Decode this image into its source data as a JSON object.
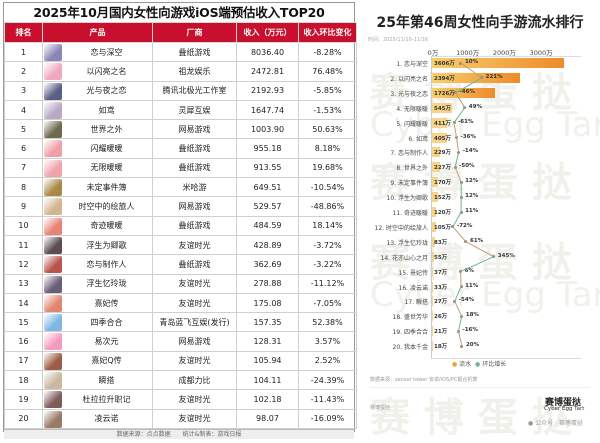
{
  "left_table": {
    "title": "2025年10月国内女性向游戏iOS端预估收入TOP20",
    "header_color": "#c8102e",
    "columns": [
      "排名",
      "产品",
      "厂商",
      "收入（万元）",
      "收入环比变化"
    ],
    "rows": [
      {
        "rank": "1",
        "product": "恋与深空",
        "publisher": "叠纸游戏",
        "revenue": "8036.40",
        "change": "-8.28%",
        "thumb": "#8c86b8"
      },
      {
        "rank": "2",
        "product": "以闪亮之名",
        "publisher": "祖龙娱乐",
        "revenue": "2472.81",
        "change": "76.48%",
        "thumb": "#f0a8c0"
      },
      {
        "rank": "3",
        "product": "光与夜之恋",
        "publisher": "腾讯北极光工作室",
        "revenue": "2192.93",
        "change": "-5.85%",
        "thumb": "#5a5f86"
      },
      {
        "rank": "4",
        "product": "如鸢",
        "publisher": "灵犀互娱",
        "revenue": "1647.74",
        "change": "-1.53%",
        "thumb": "#b9a9c4"
      },
      {
        "rank": "5",
        "product": "世界之外",
        "publisher": "网易游戏",
        "revenue": "1003.90",
        "change": "50.63%",
        "thumb": "#6e6a4e"
      },
      {
        "rank": "6",
        "product": "闪耀暖暖",
        "publisher": "叠纸游戏",
        "revenue": "955.18",
        "change": "8.18%",
        "thumb": "#f2a0a8"
      },
      {
        "rank": "7",
        "product": "无限暖暖",
        "publisher": "叠纸游戏",
        "revenue": "913.55",
        "change": "19.68%",
        "thumb": "#f1a3ab"
      },
      {
        "rank": "8",
        "product": "未定事件簿",
        "publisher": "米哈游",
        "revenue": "649.51",
        "change": "-10.54%",
        "thumb": "#a98946"
      },
      {
        "rank": "9",
        "product": "时空中的绘旅人",
        "publisher": "网易游戏",
        "revenue": "529.57",
        "change": "-48.86%",
        "thumb": "#d3b58e"
      },
      {
        "rank": "10",
        "product": "奇迹暖暖",
        "publisher": "叠纸游戏",
        "revenue": "484.59",
        "change": "18.14%",
        "thumb": "#e98378"
      },
      {
        "rank": "11",
        "product": "浮生为卿歌",
        "publisher": "友谊时光",
        "revenue": "428.89",
        "change": "-3.72%",
        "thumb": "#5a4c4f"
      },
      {
        "rank": "12",
        "product": "恋与制作人",
        "publisher": "叠纸游戏",
        "revenue": "362.69",
        "change": "-3.22%",
        "thumb": "#b8534d"
      },
      {
        "rank": "13",
        "product": "浮生忆玲珑",
        "publisher": "友谊时光",
        "revenue": "278.88",
        "change": "-11.12%",
        "thumb": "#6a5d78"
      },
      {
        "rank": "14",
        "product": "熹妃传",
        "publisher": "友谊时光",
        "revenue": "175.08",
        "change": "-7.05%",
        "thumb": "#e2866f"
      },
      {
        "rank": "15",
        "product": "四季合合",
        "publisher": "青岛蓝飞互娱(发行)",
        "revenue": "157.35",
        "change": "52.38%",
        "thumb": "#7fb7e3"
      },
      {
        "rank": "16",
        "product": "易次元",
        "publisher": "网易游戏",
        "revenue": "128.31",
        "change": "3.57%",
        "thumb": "#f59bbf"
      },
      {
        "rank": "17",
        "product": "熹妃Q传",
        "publisher": "友谊时光",
        "revenue": "105.94",
        "change": "2.52%",
        "thumb": "#9e5c46"
      },
      {
        "rank": "18",
        "product": "瞬搭",
        "publisher": "成都力比",
        "revenue": "104.11",
        "change": "-24.39%",
        "thumb": "#c8b9a0"
      },
      {
        "rank": "19",
        "product": "杜拉拉升职记",
        "publisher": "友谊时光",
        "revenue": "102.18",
        "change": "-11.43%",
        "thumb": "#7d5c5a"
      },
      {
        "rank": "20",
        "product": "凌云诺",
        "publisher": "友谊时光",
        "revenue": "98.07",
        "change": "-16.09%",
        "thumb": "#9a7a66"
      }
    ],
    "footer": "数据来源：点点数据　　统计&制表：游戏日报"
  },
  "right_chart": {
    "title": "25年第46周女性向手游流水排行",
    "date": "时间：2025/11/10-11/16",
    "axis_ticks": [
      "0万",
      "1000万",
      "2000万",
      "3000万"
    ],
    "legend": {
      "bar": "流水",
      "line": "环比增长"
    },
    "source": "数据来源：sensor tower 安卓/iOS/PC报合折算",
    "brand_small": "赛博蛋挞",
    "brand_big": "赛博蛋挞",
    "brand_en": "Cyber Egg Tart",
    "wechat": "公众号 · 赛博蛋挞",
    "watermark_cn": "赛 博 蛋 挞　赛",
    "watermark_en": "Cyber Egg Tart  Cyb"
  },
  "chart_data": [
    {
      "type": "table",
      "title": "2025年10月国内女性向游戏iOS端预估收入TOP20",
      "columns": [
        "排名",
        "产品",
        "厂商",
        "收入（万元）",
        "收入环比变化"
      ],
      "rows": [
        [
          1,
          "恋与深空",
          "叠纸游戏",
          8036.4,
          "-8.28%"
        ],
        [
          2,
          "以闪亮之名",
          "祖龙娱乐",
          2472.81,
          "76.48%"
        ],
        [
          3,
          "光与夜之恋",
          "腾讯北极光工作室",
          2192.93,
          "-5.85%"
        ],
        [
          4,
          "如鸢",
          "灵犀互娱",
          1647.74,
          "-1.53%"
        ],
        [
          5,
          "世界之外",
          "网易游戏",
          1003.9,
          "50.63%"
        ],
        [
          6,
          "闪耀暖暖",
          "叠纸游戏",
          955.18,
          "8.18%"
        ],
        [
          7,
          "无限暖暖",
          "叠纸游戏",
          913.55,
          "19.68%"
        ],
        [
          8,
          "未定事件簿",
          "米哈游",
          649.51,
          "-10.54%"
        ],
        [
          9,
          "时空中的绘旅人",
          "网易游戏",
          529.57,
          "-48.86%"
        ],
        [
          10,
          "奇迹暖暖",
          "叠纸游戏",
          484.59,
          "18.14%"
        ],
        [
          11,
          "浮生为卿歌",
          "友谊时光",
          428.89,
          "-3.72%"
        ],
        [
          12,
          "恋与制作人",
          "叠纸游戏",
          362.69,
          "-3.22%"
        ],
        [
          13,
          "浮生忆玲珑",
          "友谊时光",
          278.88,
          "-11.12%"
        ],
        [
          14,
          "熹妃传",
          "友谊时光",
          175.08,
          "-7.05%"
        ],
        [
          15,
          "四季合合",
          "青岛蓝飞互娱(发行)",
          157.35,
          "52.38%"
        ],
        [
          16,
          "易次元",
          "网易游戏",
          128.31,
          "3.57%"
        ],
        [
          17,
          "熹妃Q传",
          "友谊时光",
          105.94,
          "2.52%"
        ],
        [
          18,
          "瞬搭",
          "成都力比",
          104.11,
          "-24.39%"
        ],
        [
          19,
          "杜拉拉升职记",
          "友谊时光",
          102.18,
          "-11.43%"
        ],
        [
          20,
          "凌云诺",
          "友谊时光",
          98.07,
          "-16.09%"
        ]
      ]
    },
    {
      "type": "bar",
      "orientation": "horizontal",
      "title": "25年第46周女性向手游流水排行",
      "subtitle": "时间：2025/11/10-11/16",
      "xlabel": "",
      "ylabel": "",
      "xlim": [
        0,
        3800
      ],
      "x_ticks": [
        "0万",
        "1000万",
        "2000万",
        "3000万"
      ],
      "legend": [
        "流水",
        "环比增长"
      ],
      "legend_position": "bottom",
      "categories": [
        "1. 恋与深空",
        "2. 以闪亮之名",
        "3. 光与夜之恋",
        "4. 无限暖暖",
        "5. 闪耀暖暖",
        "6. 如鸢",
        "7. 恋与制作人",
        "8. 世界之外",
        "9. 未定事件簿",
        "10. 浮生为卿歌",
        "11. 奇迹暖暖",
        "12. 时空中的绘旅人",
        "13. 浮生忆玲珑",
        "14. 花亦山心之月",
        "15. 熹妃传",
        "16. 凌云诺",
        "17. 瞬搭",
        "18. 盛世芳华",
        "19. 四季合合",
        "20. 我本千金"
      ],
      "series": [
        {
          "name": "流水",
          "type": "bar",
          "unit": "万",
          "values": [
            3606,
            2394,
            1726,
            545,
            411,
            405,
            229,
            227,
            170,
            152,
            120,
            105,
            83,
            55,
            37,
            33,
            27,
            26,
            21,
            18
          ]
        },
        {
          "name": "环比增长",
          "type": "line",
          "unit": "%",
          "values": [
            10,
            221,
            -46,
            49,
            -61,
            -36,
            -14,
            -50,
            12,
            12,
            11,
            -72,
            61,
            345,
            6,
            11,
            -54,
            18,
            -16,
            20
          ]
        }
      ]
    }
  ]
}
